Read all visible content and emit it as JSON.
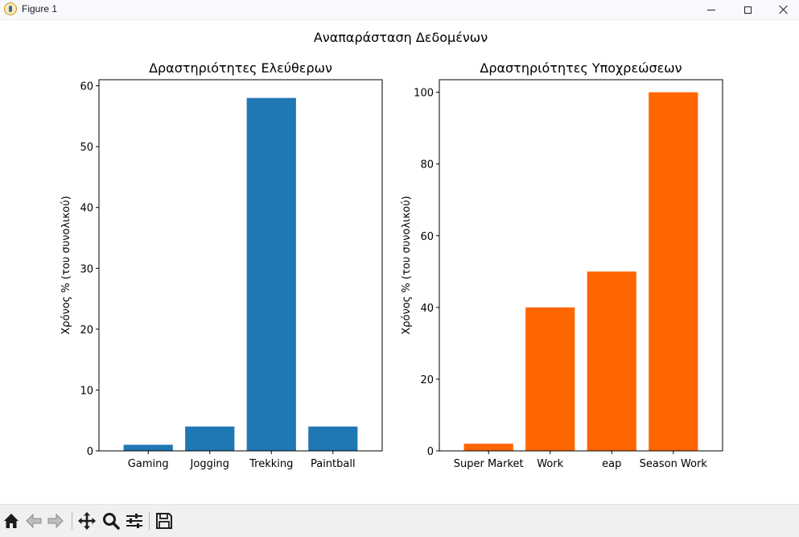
{
  "window": {
    "title": "Figure 1"
  },
  "figure": {
    "suptitle": "Αναπαράσταση Δεδομένων"
  },
  "toolbar": {
    "icons": [
      "home-icon",
      "back-arrow-icon",
      "forward-arrow-icon",
      "pan-icon",
      "zoom-icon",
      "configure-subplots-icon",
      "save-icon"
    ]
  },
  "colors": {
    "series_left": "#1f77b4",
    "series_right": "#ff6600",
    "axes": "#000000"
  },
  "chart_data": [
    {
      "type": "bar",
      "title": "Δραστηριότητες Ελεύθερων",
      "xlabel": "",
      "ylabel": "Χρόνος % (του συνολικού)",
      "categories": [
        "Gaming",
        "Jogging",
        "Trekking",
        "Paintball"
      ],
      "values": [
        1,
        4,
        58,
        4
      ],
      "ylim": [
        0,
        61
      ],
      "yticks": [
        0,
        10,
        20,
        30,
        40,
        50,
        60
      ],
      "grid": false,
      "color": "#1f77b4"
    },
    {
      "type": "bar",
      "title": "Δραστηριότητες Υποχρεώσεων",
      "xlabel": "",
      "ylabel": "Χρόνος % (του συνολικού)",
      "categories": [
        "Super Market",
        "Work",
        "eap",
        "Season Work"
      ],
      "values": [
        2,
        40,
        50,
        100
      ],
      "ylim": [
        0,
        103.5
      ],
      "yticks": [
        0,
        20,
        40,
        60,
        80,
        100
      ],
      "grid": false,
      "color": "#ff6600"
    }
  ]
}
